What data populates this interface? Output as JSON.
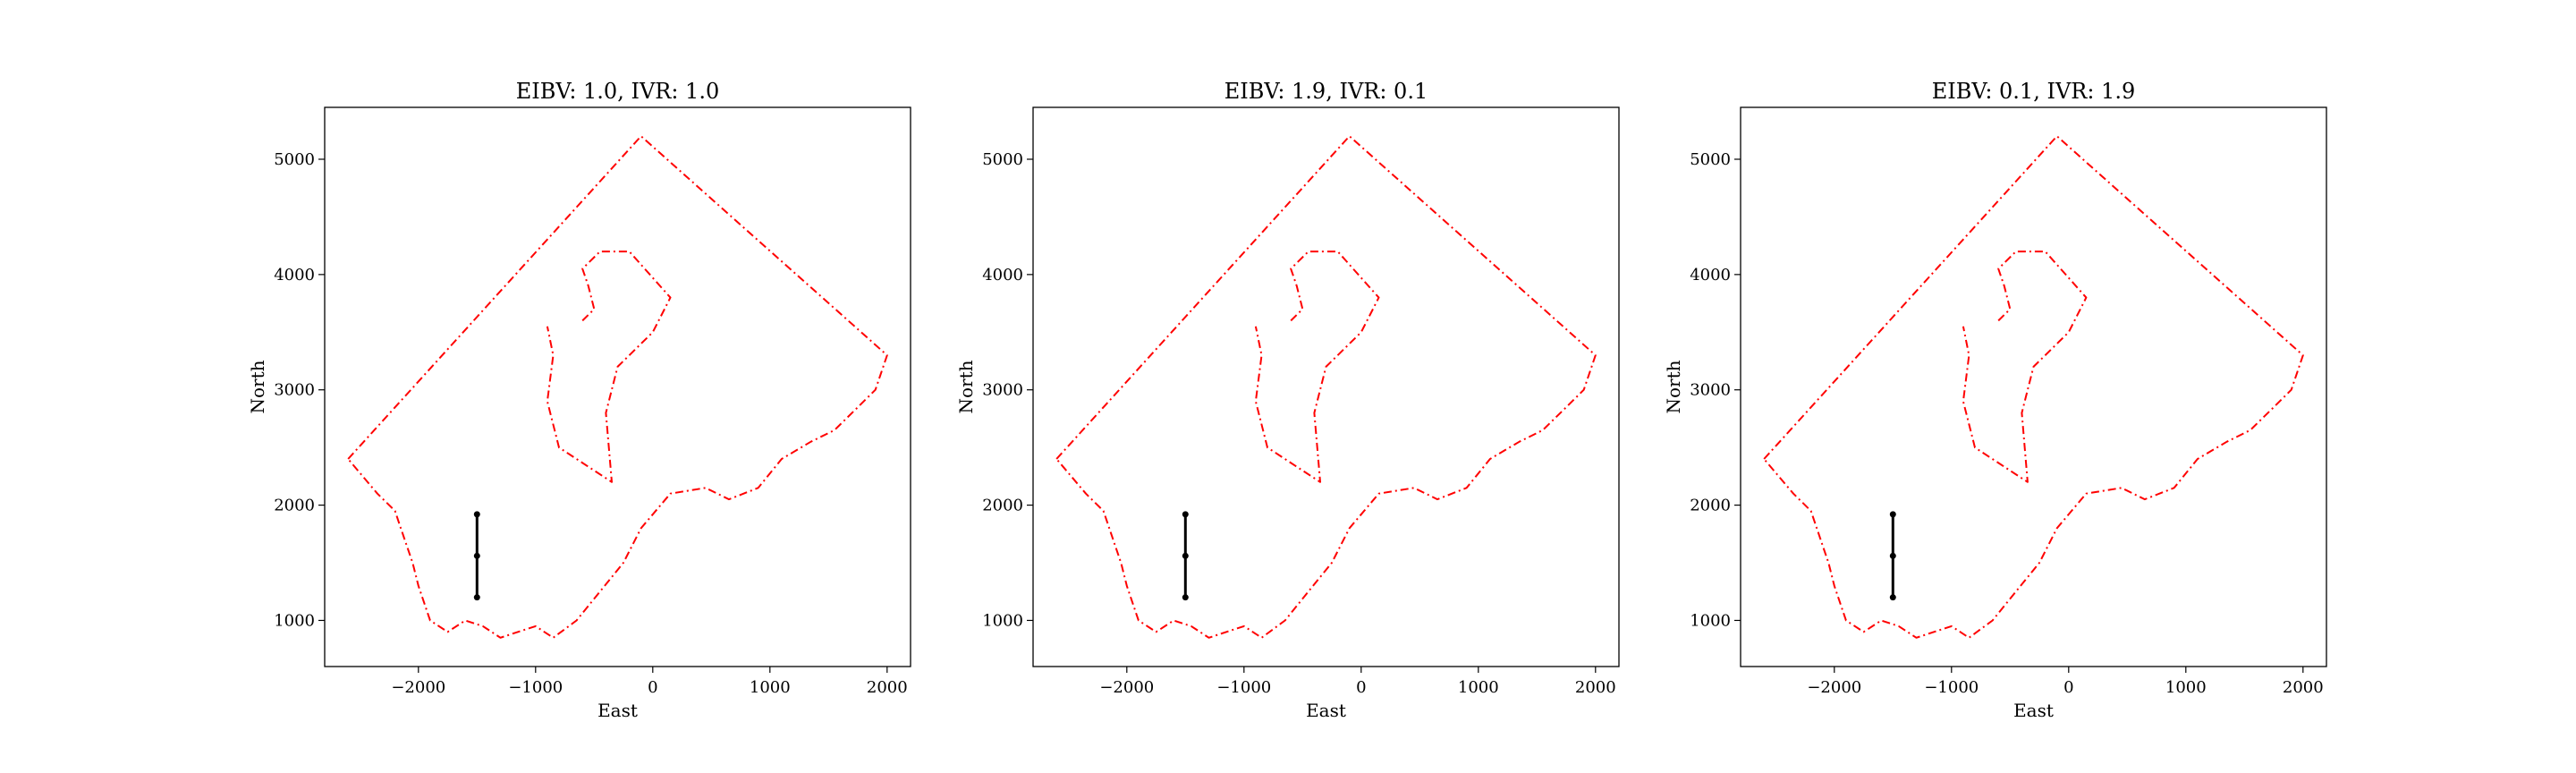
{
  "chart_data": [
    {
      "type": "line",
      "title": "EIBV: 1.0, IVR: 1.0",
      "xlabel": "East",
      "ylabel": "North",
      "xlim": [
        -2800,
        2200
      ],
      "ylim": [
        600,
        5450
      ],
      "xticks": [
        -2000,
        -1000,
        0,
        1000,
        2000
      ],
      "xtick_labels": [
        "−2000",
        "−1000",
        "0",
        "1000",
        "2000"
      ],
      "yticks": [
        1000,
        2000,
        3000,
        4000,
        5000
      ],
      "ytick_labels": [
        "1000",
        "2000",
        "3000",
        "4000",
        "5000"
      ],
      "grid": false,
      "series": [
        {
          "style": "dash-dot",
          "color": "#ff0000",
          "x": [
            -2600,
            -100,
            2000,
            1900,
            1750,
            1550,
            1350,
            1100,
            900,
            650,
            450,
            150,
            -100,
            -250,
            -450,
            -650,
            -850,
            -1000,
            -1150,
            -1300,
            -1450,
            -1600,
            -1750,
            -1900,
            -2000,
            -2050,
            -2100,
            -2150,
            -2200,
            -2350,
            -2600
          ],
          "y": [
            2400,
            5200,
            3300,
            3000,
            2850,
            2650,
            2550,
            2400,
            2150,
            2050,
            2150,
            2100,
            1800,
            1500,
            1250,
            1000,
            850,
            950,
            900,
            850,
            950,
            1000,
            900,
            1000,
            1300,
            1500,
            1650,
            1800,
            1950,
            2100,
            2400
          ]
        },
        {
          "style": "dash-dot",
          "color": "#ff0000",
          "x": [
            -600,
            -500,
            -550,
            -600,
            -450,
            -200,
            150,
            0,
            -300,
            -400,
            -350,
            -800,
            -900,
            -850,
            -900
          ],
          "y": [
            3600,
            3700,
            3900,
            4050,
            4200,
            4200,
            3800,
            3500,
            3200,
            2800,
            2200,
            2500,
            2900,
            3300,
            3550
          ]
        },
        {
          "style": "solid-markers",
          "color": "#000000",
          "x": [
            -1500,
            -1500,
            -1500
          ],
          "y": [
            1920,
            1560,
            1200
          ]
        }
      ]
    },
    {
      "type": "line",
      "title": "EIBV: 1.9, IVR: 0.1",
      "xlabel": "East",
      "ylabel": "North",
      "xlim": [
        -2800,
        2200
      ],
      "ylim": [
        600,
        5450
      ],
      "xticks": [
        -2000,
        -1000,
        0,
        1000,
        2000
      ],
      "xtick_labels": [
        "−2000",
        "−1000",
        "0",
        "1000",
        "2000"
      ],
      "yticks": [
        1000,
        2000,
        3000,
        4000,
        5000
      ],
      "ytick_labels": [
        "1000",
        "2000",
        "3000",
        "4000",
        "5000"
      ],
      "grid": false,
      "series": [
        {
          "style": "dash-dot",
          "color": "#ff0000",
          "x": [
            -2600,
            -100,
            2000,
            1900,
            1750,
            1550,
            1350,
            1100,
            900,
            650,
            450,
            150,
            -100,
            -250,
            -450,
            -650,
            -850,
            -1000,
            -1150,
            -1300,
            -1450,
            -1600,
            -1750,
            -1900,
            -2000,
            -2050,
            -2100,
            -2150,
            -2200,
            -2350,
            -2600
          ],
          "y": [
            2400,
            5200,
            3300,
            3000,
            2850,
            2650,
            2550,
            2400,
            2150,
            2050,
            2150,
            2100,
            1800,
            1500,
            1250,
            1000,
            850,
            950,
            900,
            850,
            950,
            1000,
            900,
            1000,
            1300,
            1500,
            1650,
            1800,
            1950,
            2100,
            2400
          ]
        },
        {
          "style": "dash-dot",
          "color": "#ff0000",
          "x": [
            -600,
            -500,
            -550,
            -600,
            -450,
            -200,
            150,
            0,
            -300,
            -400,
            -350,
            -800,
            -900,
            -850,
            -900
          ],
          "y": [
            3600,
            3700,
            3900,
            4050,
            4200,
            4200,
            3800,
            3500,
            3200,
            2800,
            2200,
            2500,
            2900,
            3300,
            3550
          ]
        },
        {
          "style": "solid-markers",
          "color": "#000000",
          "x": [
            -1500,
            -1500,
            -1500
          ],
          "y": [
            1920,
            1560,
            1200
          ]
        }
      ]
    },
    {
      "type": "line",
      "title": "EIBV: 0.1, IVR: 1.9",
      "xlabel": "East",
      "ylabel": "North",
      "xlim": [
        -2800,
        2200
      ],
      "ylim": [
        600,
        5450
      ],
      "xticks": [
        -2000,
        -1000,
        0,
        1000,
        2000
      ],
      "xtick_labels": [
        "−2000",
        "−1000",
        "0",
        "1000",
        "2000"
      ],
      "yticks": [
        1000,
        2000,
        3000,
        4000,
        5000
      ],
      "ytick_labels": [
        "1000",
        "2000",
        "3000",
        "4000",
        "5000"
      ],
      "grid": false,
      "series": [
        {
          "style": "dash-dot",
          "color": "#ff0000",
          "x": [
            -2600,
            -100,
            2000,
            1900,
            1750,
            1550,
            1350,
            1100,
            900,
            650,
            450,
            150,
            -100,
            -250,
            -450,
            -650,
            -850,
            -1000,
            -1150,
            -1300,
            -1450,
            -1600,
            -1750,
            -1900,
            -2000,
            -2050,
            -2100,
            -2150,
            -2200,
            -2350,
            -2600
          ],
          "y": [
            2400,
            5200,
            3300,
            3000,
            2850,
            2650,
            2550,
            2400,
            2150,
            2050,
            2150,
            2100,
            1800,
            1500,
            1250,
            1000,
            850,
            950,
            900,
            850,
            950,
            1000,
            900,
            1000,
            1300,
            1500,
            1650,
            1800,
            1950,
            2100,
            2400
          ]
        },
        {
          "style": "dash-dot",
          "color": "#ff0000",
          "x": [
            -600,
            -500,
            -550,
            -600,
            -450,
            -200,
            150,
            0,
            -300,
            -400,
            -350,
            -800,
            -900,
            -850,
            -900
          ],
          "y": [
            3600,
            3700,
            3900,
            4050,
            4200,
            4200,
            3800,
            3500,
            3200,
            2800,
            2200,
            2500,
            2900,
            3300,
            3550
          ]
        },
        {
          "style": "solid-markers",
          "color": "#000000",
          "x": [
            -1500,
            -1500,
            -1500
          ],
          "y": [
            1920,
            1560,
            1200
          ]
        }
      ]
    }
  ]
}
